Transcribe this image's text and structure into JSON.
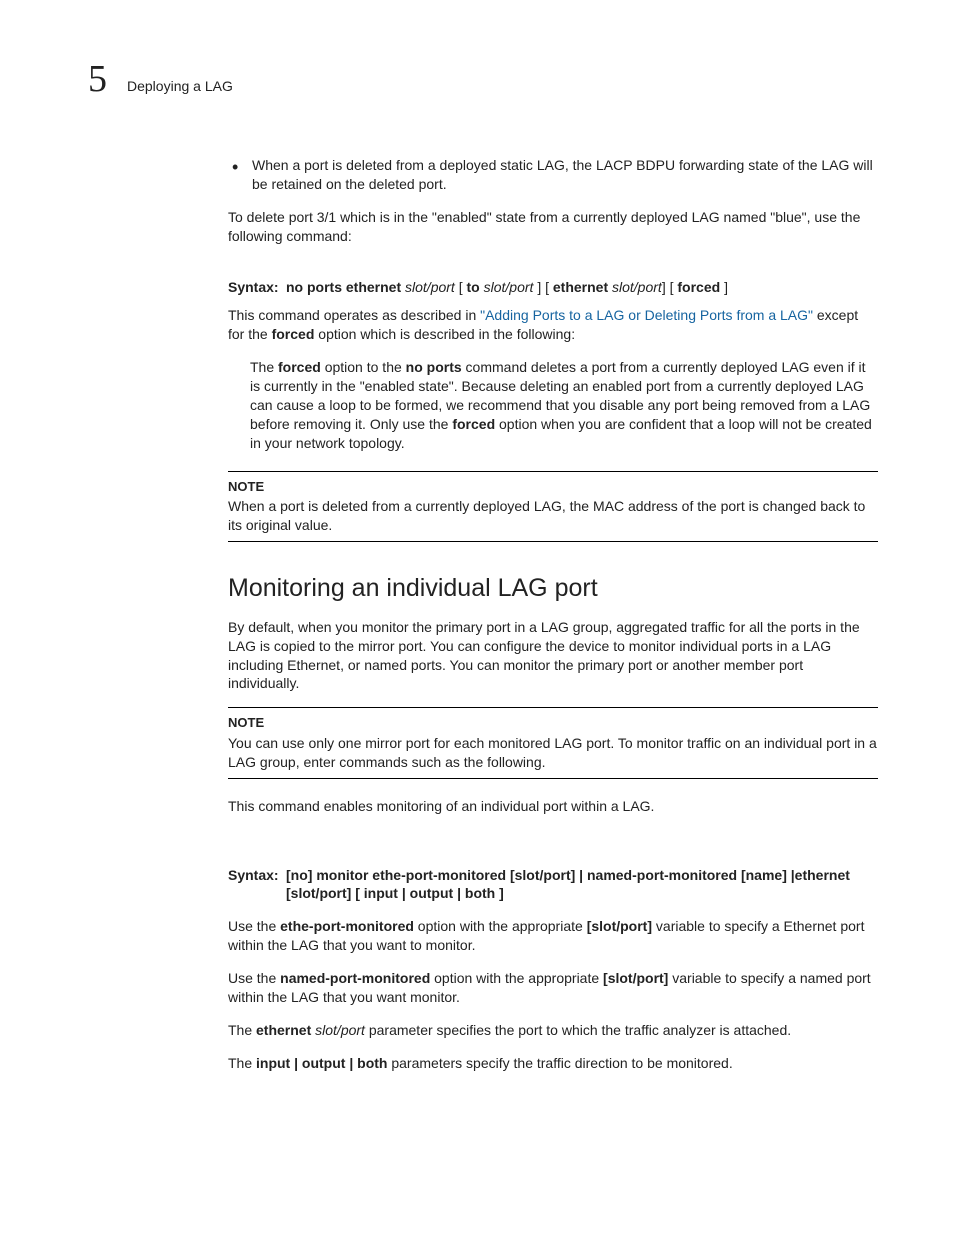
{
  "header": {
    "chapter_number": "5",
    "title": "Deploying a LAG"
  },
  "bullet1": "When a port is deleted from a deployed static LAG, the LACP BDPU forwarding state of the LAG will be retained on the deleted port.",
  "para1": "To delete port 3/1 which is in the \"enabled\" state from a currently deployed LAG named \"blue\", use the following command:",
  "syntax1": {
    "label": "Syntax:",
    "pre1": "no ports ethernet ",
    "s1_it": "slot/port",
    "s2": " [ ",
    "s2b": "to ",
    "s2_it": "slot/port ",
    "s3": "] [ ",
    "s3b": "ethernet ",
    "s3_it": "slot/port",
    "s4": "] [ ",
    "s4b": "forced ",
    "s5": "]"
  },
  "para2": {
    "a": "This command operates as described in ",
    "link": "\"Adding Ports to a LAG or Deleting Ports from a LAG\"",
    "b": " except for the ",
    "forced": "forced",
    "c": " option which is described in the following:"
  },
  "indent1": {
    "a": "The ",
    "forced": "forced",
    "b": " option to the ",
    "noports": "no ports",
    "c": " command deletes a port from a currently deployed LAG even if it is currently in the \"enabled state\". Because deleting an enabled port from a currently deployed LAG can cause a loop to be formed, we recommend that you disable any port being removed from a LAG before removing it. Only use the ",
    "forced2": "forced",
    "d": " option when you are confident that a loop will not be created in your network topology."
  },
  "note1": {
    "title": "NOTE",
    "body": "When a port is deleted from a currently deployed LAG, the MAC address of the port is changed back to its original value."
  },
  "sectionHead": "Monitoring an individual LAG port",
  "para3": "By default, when you monitor the primary port in a LAG group, aggregated traffic for all the ports in the LAG is copied to the mirror port. You can configure the device to monitor individual ports in a LAG including Ethernet, or named ports. You can monitor the primary port or another member port individually.",
  "note2": {
    "title": "NOTE",
    "body": "You can use only one mirror port for each monitored LAG port. To monitor traffic on an individual port in a LAG group, enter commands such as the following."
  },
  "para4": "This command enables monitoring of an individual port within a LAG.",
  "syntax2": {
    "label": "Syntax:",
    "l1": "[no] monitor ethe-port-monitored [slot/port] | named-port-monitored [name] |ethernet [slot/port] [ input | output | both ]"
  },
  "para5": {
    "a": "Use the ",
    "b": "ethe-port-monitored",
    "c": " option with the appropriate ",
    "d": "[slot/port]",
    "e": " variable to specify a Ethernet port within the LAG that you want to monitor."
  },
  "para6": {
    "a": "Use the ",
    "b": "named-port-monitored",
    "c": " option with the appropriate ",
    "d": "[slot/port]",
    "e": " variable to specify a named port within the LAG that you want monitor."
  },
  "para7": {
    "a": "The ",
    "b": "ethernet ",
    "c": "slot/port",
    "d": " parameter specifies the port to which the traffic analyzer is attached."
  },
  "para8": {
    "a": "The ",
    "b": "input | output | both",
    "c": " parameters specify the traffic direction to be monitored."
  }
}
